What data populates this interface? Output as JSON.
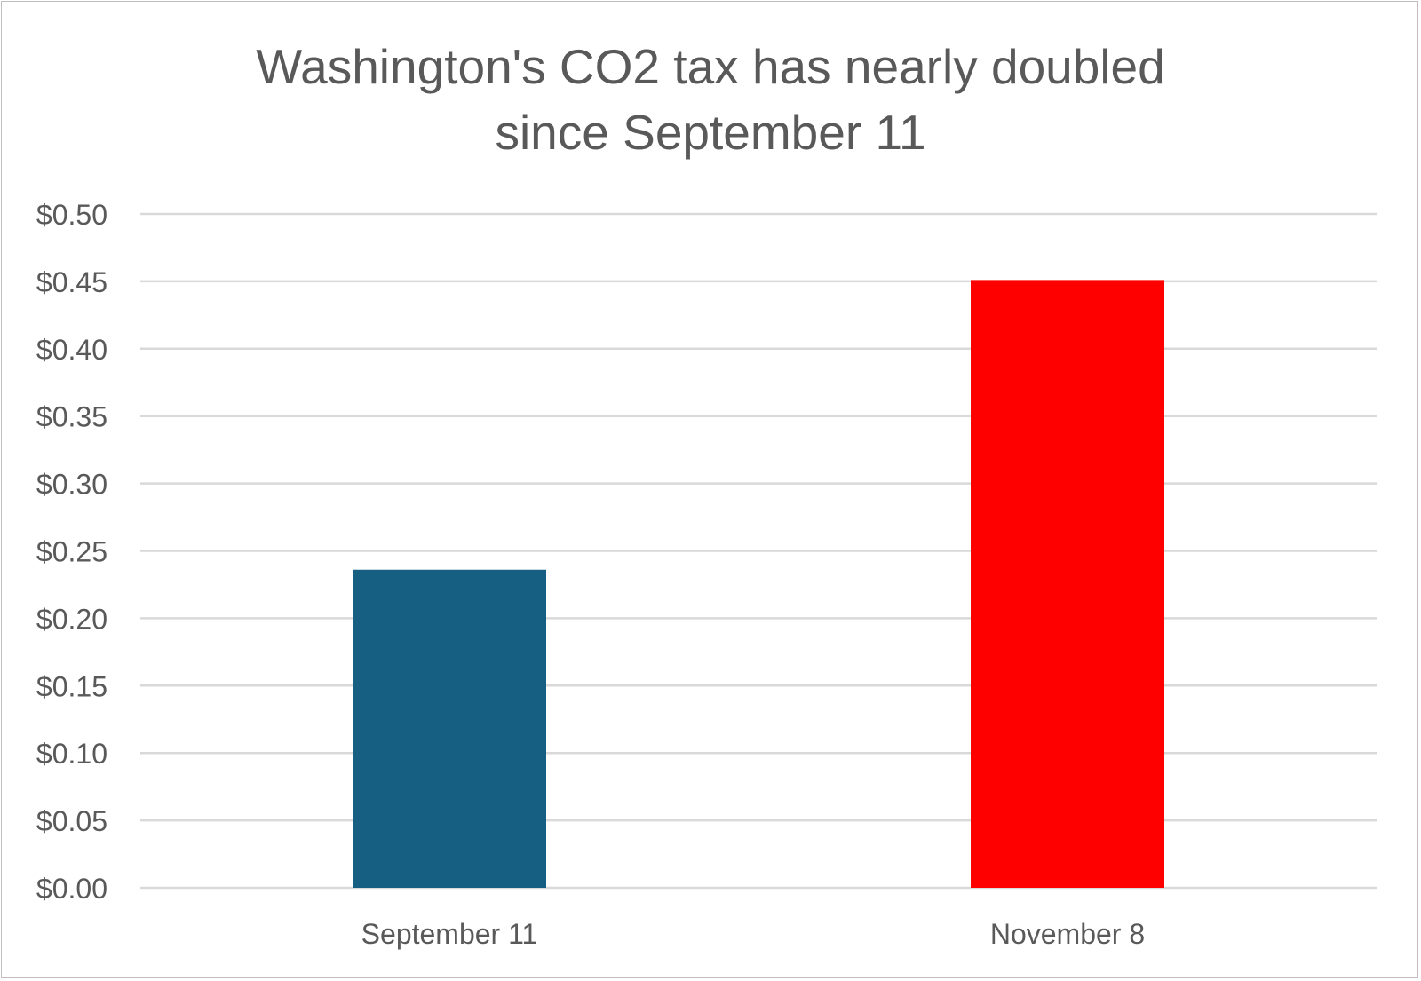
{
  "chart_data": {
    "type": "bar",
    "title_lines": [
      "Washington's CO2 tax has nearly doubled",
      "since September 11"
    ],
    "categories": [
      "September 11",
      "November 8"
    ],
    "values": [
      0.236,
      0.451
    ],
    "bar_colors": [
      "#175f82",
      "#ff0000"
    ],
    "ylim": [
      0,
      0.5
    ],
    "yticks": [
      "$0.00",
      "$0.05",
      "$0.10",
      "$0.15",
      "$0.20",
      "$0.25",
      "$0.30",
      "$0.35",
      "$0.40",
      "$0.45",
      "$0.50"
    ],
    "grid": true,
    "legend": "none",
    "xlabel": "",
    "ylabel": ""
  },
  "colors": {
    "title": "#595959",
    "tick_label": "#595959",
    "gridline": "#d9d9d9"
  }
}
